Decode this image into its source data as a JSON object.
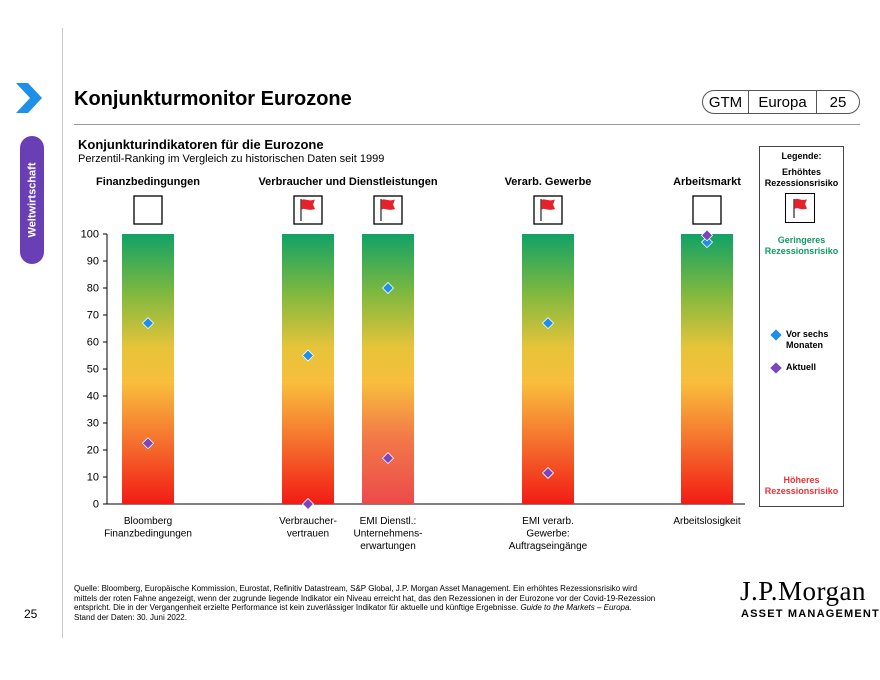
{
  "header": {
    "title": "Konjunkturmonitor Eurozone",
    "badge": {
      "gtm": "GTM",
      "region": "Europa",
      "page": "25"
    }
  },
  "sidebar": {
    "tab_label": "Weltwirtschaft",
    "page_number": "25"
  },
  "chart_data": {
    "type": "scatter",
    "title": "Konjunkturindikatoren für die Eurozone",
    "subtitle": "Perzentil-Ranking im Vergleich zu historischen Daten seit 1999",
    "ylim": [
      0,
      100
    ],
    "yticks": [
      0,
      10,
      20,
      30,
      40,
      50,
      60,
      70,
      80,
      90,
      100
    ],
    "groups": [
      {
        "label": "Finanzbedingungen"
      },
      {
        "label": "Verbraucher und Dienstleistungen"
      },
      {
        "label": "Verarb. Gewerbe"
      },
      {
        "label": "Arbeitsmarkt"
      }
    ],
    "indicators": [
      {
        "label": "Bloomberg Finanzbedingungen",
        "label_lines": [
          "Bloomberg",
          "Finanzbedingungen"
        ],
        "vor_sechs_monaten": 67,
        "aktuell": 22.5,
        "flag": false
      },
      {
        "label": "Verbraucher-vertrauen",
        "label_lines": [
          "Verbraucher-",
          "vertrauen"
        ],
        "vor_sechs_monaten": 55,
        "aktuell": 0,
        "flag": true
      },
      {
        "label": "EMI Dienstl.: Unternehmens-erwartungen",
        "label_lines": [
          "EMI Dienstl.:",
          "Unternehmens-",
          "erwartungen"
        ],
        "vor_sechs_monaten": 80,
        "aktuell": 17,
        "flag": true
      },
      {
        "label": "EMI verarb. Gewerbe: Auftragseingänge",
        "label_lines": [
          "EMI verarb.",
          "Gewerbe:",
          "Auftragseingänge"
        ],
        "vor_sechs_monaten": 67,
        "aktuell": 11.5,
        "flag": true
      },
      {
        "label": "Arbeitslosigkeit",
        "label_lines": [
          "Arbeitslosigkeit"
        ],
        "vor_sechs_monaten": 97,
        "aktuell": 99.5,
        "flag": false
      }
    ],
    "series": [
      {
        "name": "Vor sechs Monaten",
        "color": "#1e90e8"
      },
      {
        "name": "Aktuell",
        "color": "#7a45c0"
      }
    ]
  },
  "legend": {
    "title": "Legende:",
    "high_risk_flag": "Erhöhtes Rezessionsrisiko",
    "low_risk": "Geringeres Rezessionsrisiko",
    "six_months_ago": "Vor sechs Monaten",
    "current": "Aktuell",
    "higher_risk": "Höheres Rezessionsrisiko"
  },
  "footer": {
    "source_line1": "Quelle: Bloomberg, Europäische Kommission, Eurostat, Refinitiv Datastream, S&P Global, J.P. Morgan Asset Management. Ein erhöhtes Rezessionsrisiko wird",
    "source_line2": "mittels der roten Fahne angezeigt, wenn der zugrunde liegende Indikator ein Niveau erreicht hat, das den Rezessionen in der Eurozone vor der Covid-19-Rezession",
    "source_line3": "entspricht. Die in der Vergangenheit erzielte Performance ist kein zuverlässiger Indikator für aktuelle und künftige Ergebnisse.",
    "source_italic": "Guide to the Markets – Europa.",
    "source_line4": "Stand der Daten: 30. Juni 2022.",
    "logo_main": "J.P.Morgan",
    "logo_sub": "ASSET MANAGEMENT"
  },
  "colors": {
    "accent": "#6a3fb5",
    "arrow": "#1e90e8",
    "flag": "#e8202a",
    "green": "#139a63",
    "red": "#e8333a"
  }
}
